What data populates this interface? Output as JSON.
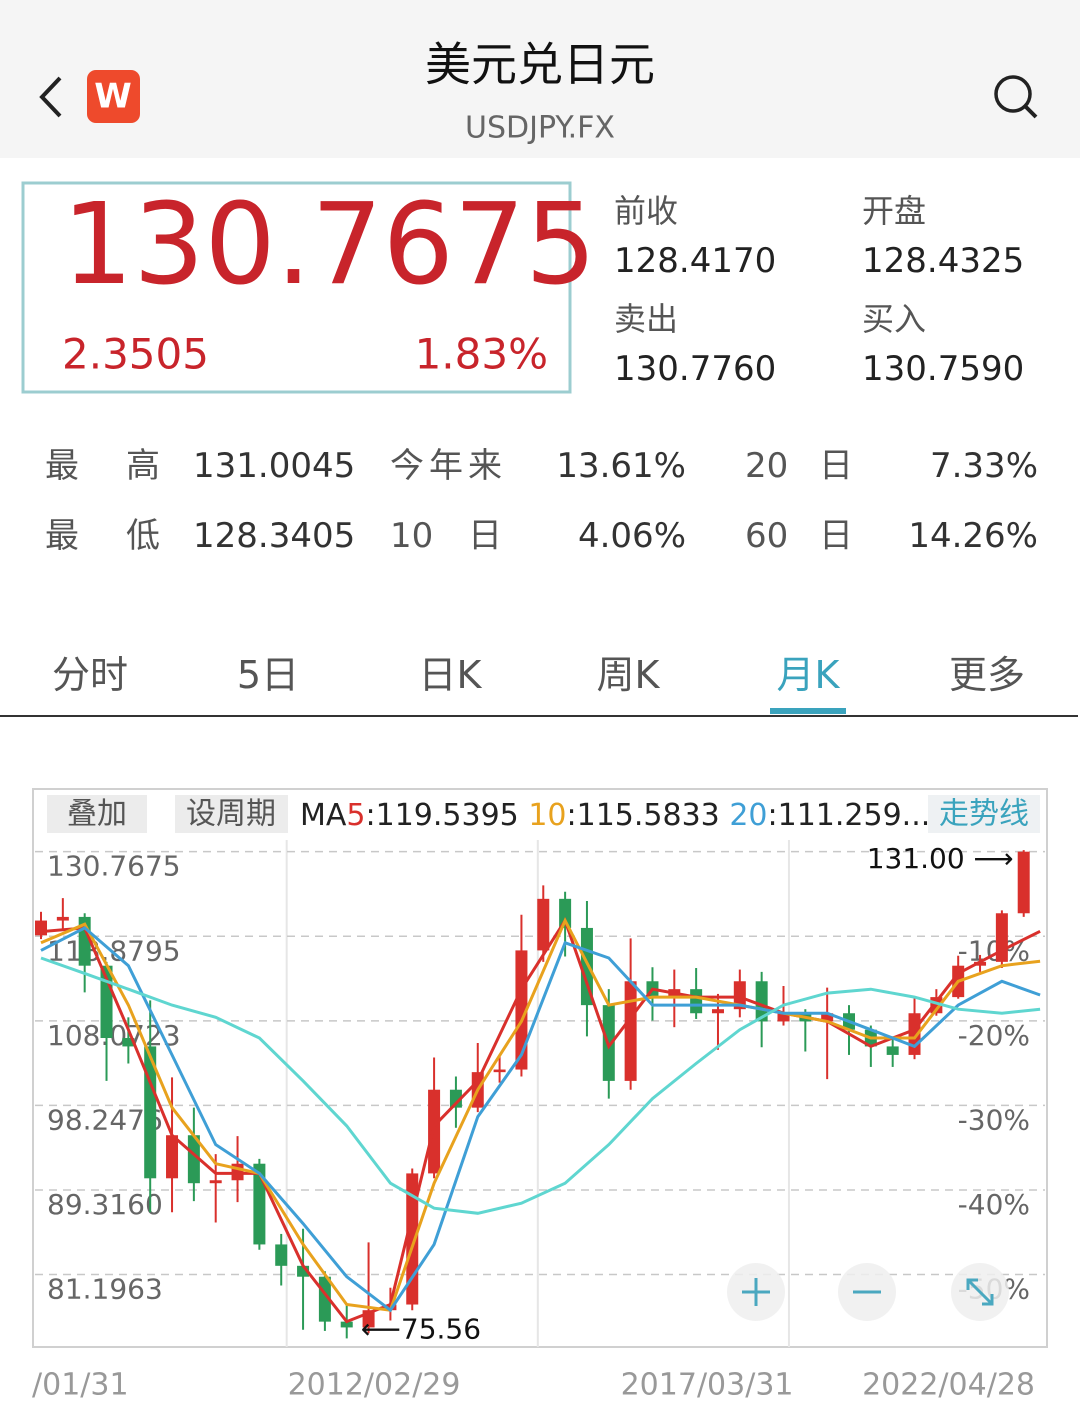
{
  "header": {
    "title": "美元兑日元",
    "subtitle": "USDJPY.FX",
    "app_icon": "W"
  },
  "quote": {
    "price": "130.7675",
    "change": "2.3505",
    "change_pct": "1.83%",
    "fields": [
      {
        "label": "前收",
        "value": "128.4170"
      },
      {
        "label": "开盘",
        "value": "128.4325"
      },
      {
        "label": "卖出",
        "value": "130.7760"
      },
      {
        "label": "买入",
        "value": "130.7590"
      }
    ]
  },
  "stats": [
    [
      {
        "label": "最高",
        "value": "131.0045"
      },
      {
        "label": "今年来",
        "value": "13.61%"
      },
      {
        "label": "20 日",
        "value": "7.33%"
      }
    ],
    [
      {
        "label": "最低",
        "value": "128.3405"
      },
      {
        "label": "10 日",
        "value": "4.06%"
      },
      {
        "label": "60 日",
        "value": "14.26%"
      }
    ]
  ],
  "tabs": [
    "分时",
    "5日",
    "日K",
    "周K",
    "月K",
    "更多"
  ],
  "active_tab": 4,
  "chart_data": {
    "type": "candlestick",
    "toolbar": [
      "叠加",
      "设周期"
    ],
    "trend_button": "走势线",
    "ma_header": [
      {
        "prefix": "MA",
        "name": "5",
        "text": ":119.5395",
        "color": "#d9302c"
      },
      {
        "name": "10",
        "text": ":115.5833",
        "color": "#e8a21e"
      },
      {
        "name": "20",
        "text": ":111.259...",
        "color": "#3f9fd6"
      }
    ],
    "up_color": "#d9302c",
    "down_color": "#2b9a57",
    "x": [
      0,
      4,
      8,
      12,
      16,
      20,
      24,
      28,
      32,
      36,
      40,
      44,
      48,
      52,
      56,
      60,
      64,
      68,
      72,
      76,
      80,
      84,
      88,
      92,
      96,
      100,
      104,
      108,
      112,
      116,
      120,
      124,
      128,
      132,
      136,
      140,
      144,
      148,
      152,
      156,
      160,
      164,
      168,
      172,
      176,
      180
    ],
    "open": [
      119.0,
      121.0,
      121.5,
      115.0,
      106.0,
      105.0,
      90.5,
      95.0,
      90.0,
      90.3,
      92.0,
      84.0,
      82.0,
      81.0,
      77.0,
      76.5,
      78.0,
      78.5,
      91.0,
      100.0,
      98.0,
      102.0,
      102.3,
      117.0,
      124.0,
      120.0,
      110.0,
      101.0,
      113.0,
      111.0,
      112.0,
      109.0,
      109.5,
      113.0,
      108.0,
      109.0,
      108.0,
      109.0,
      107.0,
      105.0,
      104.0,
      109.0,
      111.0,
      115.0,
      115.5,
      122.0
    ],
    "high": [
      122.2,
      124.1,
      122.0,
      115.5,
      108.5,
      110.6,
      101.4,
      98.0,
      93.0,
      94.9,
      92.5,
      85.0,
      85.5,
      81.5,
      78.5,
      84.2,
      80.0,
      91.5,
      103.7,
      101.5,
      105.4,
      104.0,
      121.8,
      125.9,
      125.0,
      123.7,
      112.0,
      118.6,
      114.8,
      114.5,
      114.7,
      111.4,
      114.5,
      114.2,
      112.4,
      109.5,
      112.2,
      110.0,
      107.5,
      106.2,
      111.0,
      112.0,
      116.3,
      116.4,
      122.4,
      131.0045
    ],
    "low": [
      118.5,
      119.8,
      111.6,
      101.0,
      103.0,
      87.1,
      87.1,
      88.2,
      86.1,
      88.1,
      83.5,
      80.2,
      76.3,
      76.2,
      75.56,
      76.0,
      77.1,
      78.0,
      90.5,
      95.8,
      97.5,
      100.8,
      101.5,
      115.5,
      116.2,
      106.2,
      99.0,
      100.0,
      108.1,
      107.3,
      108.3,
      104.6,
      108.5,
      104.9,
      107.5,
      104.4,
      101.2,
      104.0,
      102.6,
      102.6,
      103.5,
      108.7,
      110.8,
      114.2,
      114.7,
      121.5
    ],
    "close": [
      121.0,
      121.5,
      115.0,
      106.0,
      105.0,
      90.5,
      95.0,
      90.0,
      90.3,
      92.0,
      84.0,
      82.0,
      81.0,
      77.0,
      76.5,
      78.0,
      78.5,
      91.0,
      100.0,
      98.0,
      102.0,
      102.3,
      117.0,
      124.0,
      120.0,
      110.0,
      101.0,
      113.0,
      111.0,
      112.0,
      109.0,
      109.5,
      113.0,
      108.0,
      109.0,
      108.0,
      109.0,
      107.0,
      105.0,
      104.0,
      109.0,
      111.0,
      115.0,
      115.5,
      122.0,
      130.7675
    ],
    "ma_lines": {
      "x": [
        0,
        8,
        16,
        24,
        32,
        40,
        48,
        56,
        64,
        72,
        80,
        88,
        96,
        104,
        112,
        120,
        128,
        136,
        144,
        152,
        160,
        168,
        176,
        183
      ],
      "series": [
        {
          "color": "#d9302c",
          "values": [
            119.5,
            120,
            107,
            95,
            91,
            91,
            82,
            77,
            78.5,
            96,
            101,
            112,
            121,
            105,
            112,
            111,
            111,
            109,
            108,
            105,
            107,
            114,
            117,
            119.5395
          ]
        },
        {
          "color": "#e8a21e",
          "values": [
            118,
            120.5,
            110,
            98,
            92,
            91,
            84,
            78.5,
            78,
            90,
            100,
            108,
            121,
            110,
            111,
            111,
            110,
            109,
            108,
            106,
            106,
            113,
            115,
            115.5833
          ]
        },
        {
          "color": "#3f9fd6",
          "values": [
            117,
            120,
            115,
            104,
            94,
            91,
            86,
            81,
            78,
            84,
            97,
            104,
            118,
            116,
            110,
            110,
            110,
            109,
            109,
            107,
            105,
            110,
            113,
            111.259
          ]
        },
        {
          "color": "#5fd6d0",
          "values": [
            116,
            114,
            112,
            110,
            108.5,
            106,
            101,
            96,
            90,
            87.5,
            87,
            88,
            90,
            94,
            99,
            103,
            107,
            110,
            111.5,
            112,
            111,
            109.5,
            109,
            109.5
          ]
        }
      ]
    },
    "xlim": [
      -1.1,
      183.9
    ],
    "ylim": [
      75,
      132.5
    ],
    "log_scale": true,
    "xticks": [
      {
        "value": 0,
        "label": "/01/31"
      },
      {
        "value": 61,
        "label": "2012/02/29"
      },
      {
        "value": 122,
        "label": "2017/03/31"
      },
      {
        "value": 183,
        "label": "2022/04/28"
      }
    ],
    "xgrid": [
      45,
      91,
      137
    ],
    "yticks": [
      130.7675,
      118.8795,
      108.0723,
      98.2476,
      {
        "value": 89.316,
        "label": "89.3160"
      },
      81.1963
    ],
    "pct_ticks": [
      {
        "value": 118.8795,
        "label": "-10%"
      },
      {
        "value": 108.0723,
        "label": "-20%"
      },
      {
        "value": 98.2476,
        "label": "-30%"
      },
      {
        "value": 89.316,
        "label": "-40%"
      },
      {
        "value": 81.1963,
        "label": "-50%"
      }
    ],
    "high_label": "131.00 ⟶",
    "low_label": "⟵75.56"
  }
}
